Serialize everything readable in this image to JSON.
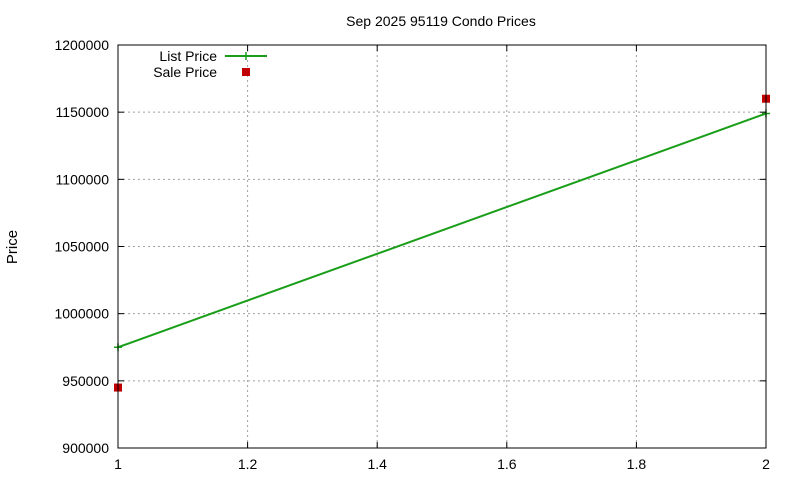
{
  "chart_data": {
    "type": "line",
    "title": "Sep 2025 95119 Condo Prices",
    "xlabel": "",
    "ylabel": "Price",
    "xlim": [
      1,
      2
    ],
    "ylim": [
      900000,
      1200000
    ],
    "xticks": [
      1,
      1.2,
      1.4,
      1.6,
      1.8,
      2
    ],
    "xtick_labels": [
      "1",
      "1.2",
      "1.4",
      "1.6",
      "1.8",
      "2"
    ],
    "yticks": [
      900000,
      950000,
      1000000,
      1050000,
      1100000,
      1150000,
      1200000
    ],
    "ytick_labels": [
      "900000",
      "950000",
      "1000000",
      "1050000",
      "1100000",
      "1150000",
      "1200000"
    ],
    "grid": true,
    "legend_position": "top-left",
    "series": [
      {
        "name": "List Price",
        "kind": "line",
        "marker": "plus",
        "color": "#1a9e1a",
        "points": [
          [
            1,
            975000
          ],
          [
            2,
            1149000
          ]
        ]
      },
      {
        "name": "Sale Price",
        "kind": "scatter",
        "marker": "square",
        "color": "#c00000",
        "points": [
          [
            1,
            945000
          ],
          [
            2,
            1160000
          ]
        ]
      }
    ]
  }
}
